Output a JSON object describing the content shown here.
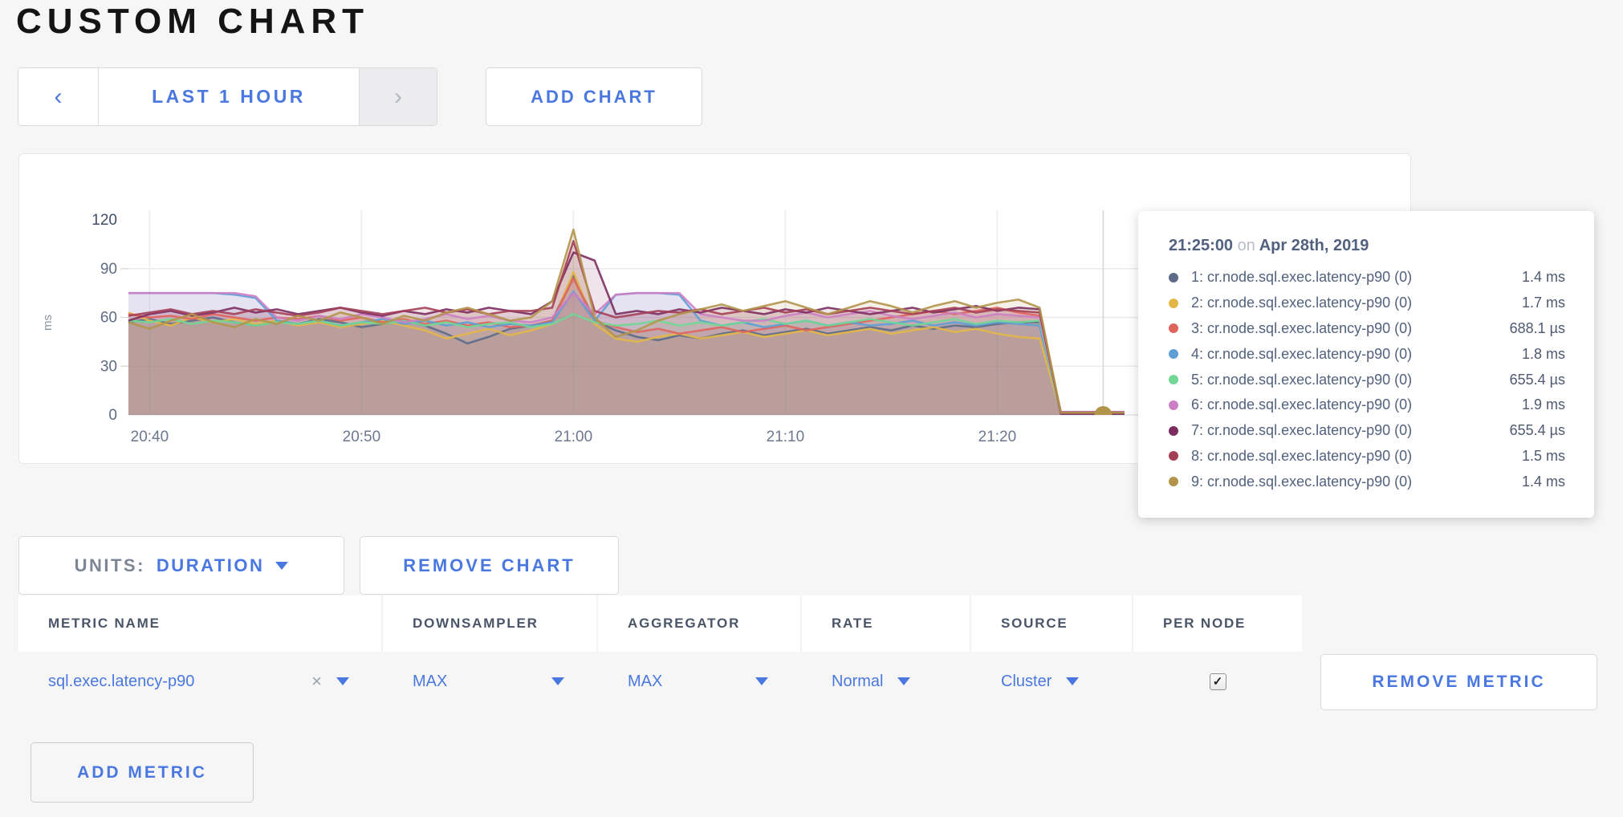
{
  "page": {
    "title": "CUSTOM CHART"
  },
  "colors": {
    "accent_blue": "#4a78e0",
    "muted_gray": "#9aa2ad"
  },
  "toolbar": {
    "prev_icon": "‹",
    "time_range": "LAST 1 HOUR",
    "next_icon": "›",
    "add_chart": "ADD CHART"
  },
  "tooltip": {
    "time": "21:25:00",
    "on": "on",
    "date": "Apr 28th, 2019"
  },
  "chart_controls": {
    "units_label": "UNITS:",
    "units_value": "DURATION",
    "remove_chart": "REMOVE CHART"
  },
  "table": {
    "headers": [
      "METRIC NAME",
      "DOWNSAMPLER",
      "AGGREGATOR",
      "RATE",
      "SOURCE",
      "PER NODE"
    ],
    "row": {
      "metric": "sql.exec.latency-p90",
      "close_icon": "×",
      "downsampler": "MAX",
      "aggregator": "MAX",
      "rate": "Normal",
      "source": "Cluster",
      "per_node_checked": true,
      "check_glyph": "✓",
      "remove_metric": "REMOVE METRIC"
    },
    "add_metric": "ADD METRIC"
  },
  "chart_data": {
    "type": "area",
    "title": "",
    "xlabel": "",
    "ylabel": "ms",
    "ylim": [
      0,
      120
    ],
    "y_ticks": [
      0,
      30,
      60,
      90,
      120
    ],
    "grid": true,
    "legend_position": "tooltip",
    "x_start_time": "20:39",
    "x_step_minutes": 1,
    "x_ticks": [
      {
        "label": "20:40",
        "i": 1
      },
      {
        "label": "20:50",
        "i": 11
      },
      {
        "label": "21:00",
        "i": 21
      },
      {
        "label": "21:10",
        "i": 31
      },
      {
        "label": "21:20",
        "i": 41
      }
    ],
    "hover": {
      "i": 46,
      "time": "21:25:00",
      "dot_color": "#b2954a"
    },
    "series": [
      {
        "name": "1: cr.node.sql.exec.latency-p90 (0)",
        "value": "1.4 ms",
        "color": "#5b6b88",
        "values": [
          57,
          59,
          56,
          58,
          60,
          57,
          55,
          58,
          56,
          59,
          57,
          54,
          56,
          58,
          55,
          50,
          44,
          48,
          53,
          55,
          58,
          86,
          58,
          52,
          48,
          46,
          49,
          47,
          50,
          52,
          49,
          51,
          53,
          50,
          52,
          54,
          52,
          55,
          53,
          55,
          54,
          56,
          57,
          57,
          1.4,
          1.4,
          1.4,
          1.4
        ]
      },
      {
        "name": "2: cr.node.sql.exec.latency-p90 (0)",
        "value": "1.7 ms",
        "color": "#e3b748",
        "values": [
          63,
          58,
          55,
          60,
          57,
          59,
          56,
          58,
          55,
          57,
          54,
          56,
          58,
          55,
          52,
          47,
          50,
          53,
          49,
          52,
          56,
          88,
          56,
          47,
          45,
          48,
          50,
          47,
          49,
          51,
          48,
          50,
          52,
          49,
          51,
          53,
          50,
          52,
          54,
          51,
          53,
          50,
          48,
          47,
          1.7,
          1.7,
          1.7,
          1.7
        ]
      },
      {
        "name": "3: cr.node.sql.exec.latency-p90 (0)",
        "value": "688.1 µs",
        "color": "#e0645e",
        "values": [
          62,
          60,
          61,
          59,
          62,
          60,
          58,
          60,
          59,
          61,
          58,
          60,
          57,
          59,
          56,
          58,
          55,
          57,
          54,
          55,
          58,
          84,
          58,
          54,
          51,
          53,
          50,
          52,
          54,
          51,
          53,
          55,
          52,
          54,
          56,
          58,
          60,
          62,
          64,
          62,
          64,
          66,
          63,
          61,
          0.69,
          0.69,
          0.69,
          0.69
        ]
      },
      {
        "name": "4: cr.node.sql.exec.latency-p90 (0)",
        "value": "1.8 ms",
        "color": "#5d9fd5",
        "values": [
          75,
          75,
          75,
          75,
          75,
          74,
          72,
          58,
          56,
          58,
          55,
          57,
          59,
          56,
          58,
          55,
          57,
          54,
          56,
          55,
          57,
          76,
          58,
          74,
          75,
          75,
          74,
          58,
          55,
          57,
          54,
          56,
          58,
          55,
          57,
          55,
          56,
          58,
          55,
          57,
          55,
          57,
          56,
          55,
          1.8,
          1.8,
          1.8,
          1.8
        ]
      },
      {
        "name": "5: cr.node.sql.exec.latency-p90 (0)",
        "value": "655.4 µs",
        "color": "#72d695",
        "values": [
          58,
          57,
          59,
          56,
          58,
          57,
          55,
          57,
          56,
          58,
          55,
          57,
          56,
          58,
          55,
          57,
          54,
          56,
          57,
          54,
          56,
          62,
          57,
          55,
          56,
          58,
          55,
          57,
          55,
          57,
          59,
          56,
          58,
          55,
          57,
          59,
          57,
          55,
          57,
          59,
          56,
          58,
          57,
          58,
          0.66,
          0.66,
          0.66,
          0.66
        ]
      },
      {
        "name": "6: cr.node.sql.exec.latency-p90 (0)",
        "value": "1.9 ms",
        "color": "#cc7fc4",
        "values": [
          75,
          75,
          75,
          75,
          75,
          75,
          73,
          60,
          58,
          61,
          59,
          62,
          60,
          57,
          59,
          62,
          59,
          61,
          58,
          57,
          60,
          75,
          62,
          74,
          75,
          75,
          75,
          62,
          60,
          58,
          58,
          61,
          63,
          60,
          62,
          64,
          61,
          59,
          61,
          63,
          60,
          62,
          61,
          60,
          1.9,
          1.9,
          1.9,
          1.9
        ]
      },
      {
        "name": "7: cr.node.sql.exec.latency-p90 (0)",
        "value": "655.4 µs",
        "color": "#7c2d60",
        "values": [
          58,
          62,
          64,
          61,
          63,
          66,
          63,
          65,
          62,
          64,
          66,
          63,
          61,
          64,
          62,
          65,
          63,
          66,
          64,
          62,
          70,
          100,
          95,
          62,
          64,
          62,
          65,
          63,
          66,
          64,
          62,
          65,
          63,
          66,
          64,
          62,
          64,
          66,
          63,
          65,
          67,
          64,
          66,
          65,
          0.66,
          0.66,
          0.66,
          0.66
        ]
      },
      {
        "name": "8: cr.node.sql.exec.latency-p90 (0)",
        "value": "1.5 ms",
        "color": "#a43f58",
        "values": [
          61,
          63,
          65,
          62,
          64,
          62,
          65,
          63,
          61,
          63,
          66,
          64,
          62,
          64,
          66,
          63,
          65,
          62,
          64,
          64,
          66,
          107,
          64,
          60,
          62,
          64,
          63,
          65,
          62,
          64,
          66,
          63,
          65,
          62,
          64,
          66,
          64,
          62,
          64,
          66,
          63,
          65,
          64,
          63,
          1.5,
          1.5,
          1.5,
          1.5
        ]
      },
      {
        "name": "9: cr.node.sql.exec.latency-p90 (0)",
        "value": "1.4 ms",
        "color": "#b2954a",
        "values": [
          57,
          53,
          58,
          62,
          57,
          54,
          59,
          56,
          61,
          58,
          63,
          60,
          56,
          61,
          58,
          63,
          66,
          62,
          58,
          60,
          70,
          114,
          60,
          48,
          52,
          58,
          62,
          65,
          68,
          64,
          67,
          70,
          66,
          62,
          66,
          70,
          67,
          63,
          67,
          70,
          66,
          69,
          71,
          66,
          1.4,
          1.4,
          1.4,
          1.4
        ]
      }
    ]
  }
}
